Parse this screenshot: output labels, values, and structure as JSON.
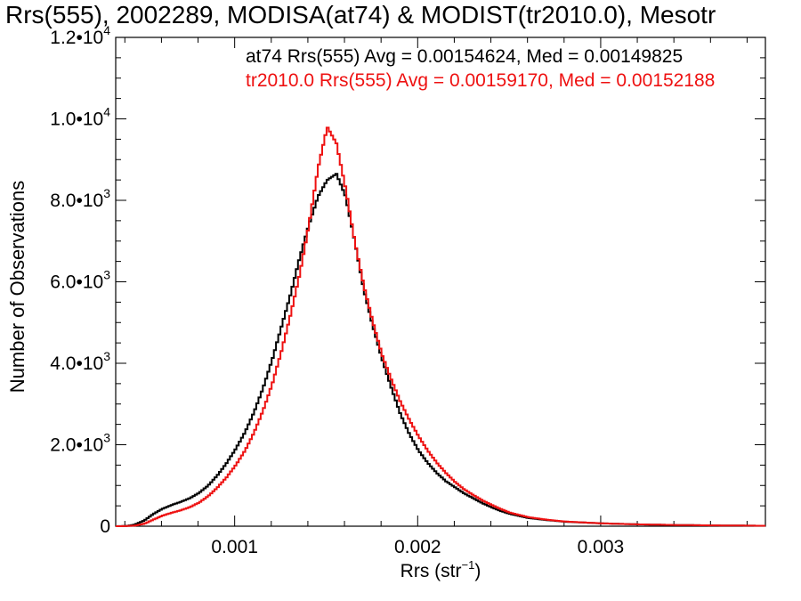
{
  "chart_data": {
    "type": "line",
    "title": "Rrs(555), 2002289, MODISA(at74) & MODIST(tr2010.0), Mesotr",
    "xlabel": "Rrs (str",
    "xlabel_sup": "−1",
    "xlabel_close": ")",
    "ylabel": "Number of Observations",
    "xlim": [
      0.00035,
      0.0039
    ],
    "ylim": [
      0,
      12000
    ],
    "xticks": [
      {
        "value": 0.001,
        "label": "0.001"
      },
      {
        "value": 0.002,
        "label": "0.002"
      },
      {
        "value": 0.003,
        "label": "0.003"
      }
    ],
    "yticks": [
      {
        "value": 0,
        "mant": "0",
        "exp": ""
      },
      {
        "value": 2000,
        "mant": "2.0•10",
        "exp": "3"
      },
      {
        "value": 4000,
        "mant": "4.0•10",
        "exp": "3"
      },
      {
        "value": 6000,
        "mant": "6.0•10",
        "exp": "3"
      },
      {
        "value": 8000,
        "mant": "8.0•10",
        "exp": "3"
      },
      {
        "value": 10000,
        "mant": "1.0•10",
        "exp": "4"
      },
      {
        "value": 12000,
        "mant": "1.2•10",
        "exp": "4"
      }
    ],
    "grid": false,
    "legend_position": "top-right",
    "series": [
      {
        "name": "at74",
        "legend": "at74 Rrs(555) Avg = 0.00154624, Med = 0.00149825",
        "color": "#000000",
        "points": [
          [
            0.00035,
            0
          ],
          [
            0.0004,
            5
          ],
          [
            0.00045,
            40
          ],
          [
            0.0005,
            140
          ],
          [
            0.00055,
            300
          ],
          [
            0.0006,
            430
          ],
          [
            0.00065,
            520
          ],
          [
            0.0007,
            600
          ],
          [
            0.00075,
            690
          ],
          [
            0.0008,
            820
          ],
          [
            0.00085,
            1000
          ],
          [
            0.0009,
            1250
          ],
          [
            0.00095,
            1550
          ],
          [
            0.001,
            1900
          ],
          [
            0.00105,
            2300
          ],
          [
            0.0011,
            2800
          ],
          [
            0.00115,
            3400
          ],
          [
            0.0012,
            4100
          ],
          [
            0.00125,
            4900
          ],
          [
            0.0013,
            5700
          ],
          [
            0.00135,
            6600
          ],
          [
            0.0014,
            7400
          ],
          [
            0.00145,
            8100
          ],
          [
            0.0015,
            8500
          ],
          [
            0.00155,
            8650
          ],
          [
            0.0016,
            8100
          ],
          [
            0.00165,
            7000
          ],
          [
            0.0017,
            5800
          ],
          [
            0.00175,
            4900
          ],
          [
            0.0018,
            4100
          ],
          [
            0.00185,
            3400
          ],
          [
            0.0019,
            2750
          ],
          [
            0.00195,
            2250
          ],
          [
            0.002,
            1850
          ],
          [
            0.00205,
            1550
          ],
          [
            0.0021,
            1300
          ],
          [
            0.00215,
            1100
          ],
          [
            0.0022,
            950
          ],
          [
            0.00225,
            800
          ],
          [
            0.0023,
            680
          ],
          [
            0.00235,
            560
          ],
          [
            0.0024,
            460
          ],
          [
            0.00245,
            370
          ],
          [
            0.0025,
            300
          ],
          [
            0.0026,
            200
          ],
          [
            0.0027,
            150
          ],
          [
            0.0028,
            110
          ],
          [
            0.003,
            70
          ],
          [
            0.0032,
            45
          ],
          [
            0.0034,
            30
          ],
          [
            0.0036,
            20
          ],
          [
            0.0039,
            10
          ]
        ]
      },
      {
        "name": "tr2010.0",
        "legend": "tr2010.0 Rrs(555) Avg = 0.00159170, Med = 0.00152188",
        "color": "#ee1111",
        "points": [
          [
            0.00035,
            0
          ],
          [
            0.0004,
            2
          ],
          [
            0.00045,
            15
          ],
          [
            0.0005,
            60
          ],
          [
            0.00055,
            160
          ],
          [
            0.0006,
            260
          ],
          [
            0.00065,
            330
          ],
          [
            0.0007,
            390
          ],
          [
            0.00075,
            470
          ],
          [
            0.0008,
            580
          ],
          [
            0.00085,
            740
          ],
          [
            0.0009,
            950
          ],
          [
            0.00095,
            1200
          ],
          [
            0.001,
            1500
          ],
          [
            0.00105,
            1850
          ],
          [
            0.0011,
            2300
          ],
          [
            0.00115,
            2850
          ],
          [
            0.0012,
            3500
          ],
          [
            0.00125,
            4300
          ],
          [
            0.0013,
            5200
          ],
          [
            0.00135,
            6200
          ],
          [
            0.0014,
            7400
          ],
          [
            0.00145,
            8800
          ],
          [
            0.0015,
            9800
          ],
          [
            0.00155,
            9400
          ],
          [
            0.0016,
            8300
          ],
          [
            0.00165,
            7000
          ],
          [
            0.0017,
            5900
          ],
          [
            0.00175,
            5000
          ],
          [
            0.0018,
            4200
          ],
          [
            0.00185,
            3600
          ],
          [
            0.0019,
            3050
          ],
          [
            0.00195,
            2600
          ],
          [
            0.002,
            2200
          ],
          [
            0.00205,
            1850
          ],
          [
            0.0021,
            1550
          ],
          [
            0.00215,
            1300
          ],
          [
            0.0022,
            1080
          ],
          [
            0.00225,
            900
          ],
          [
            0.0023,
            760
          ],
          [
            0.00235,
            630
          ],
          [
            0.0024,
            520
          ],
          [
            0.00245,
            420
          ],
          [
            0.0025,
            330
          ],
          [
            0.0026,
            220
          ],
          [
            0.0027,
            160
          ],
          [
            0.0028,
            115
          ],
          [
            0.003,
            70
          ],
          [
            0.0032,
            45
          ],
          [
            0.0034,
            30
          ],
          [
            0.0036,
            20
          ],
          [
            0.0039,
            10
          ]
        ]
      }
    ]
  }
}
